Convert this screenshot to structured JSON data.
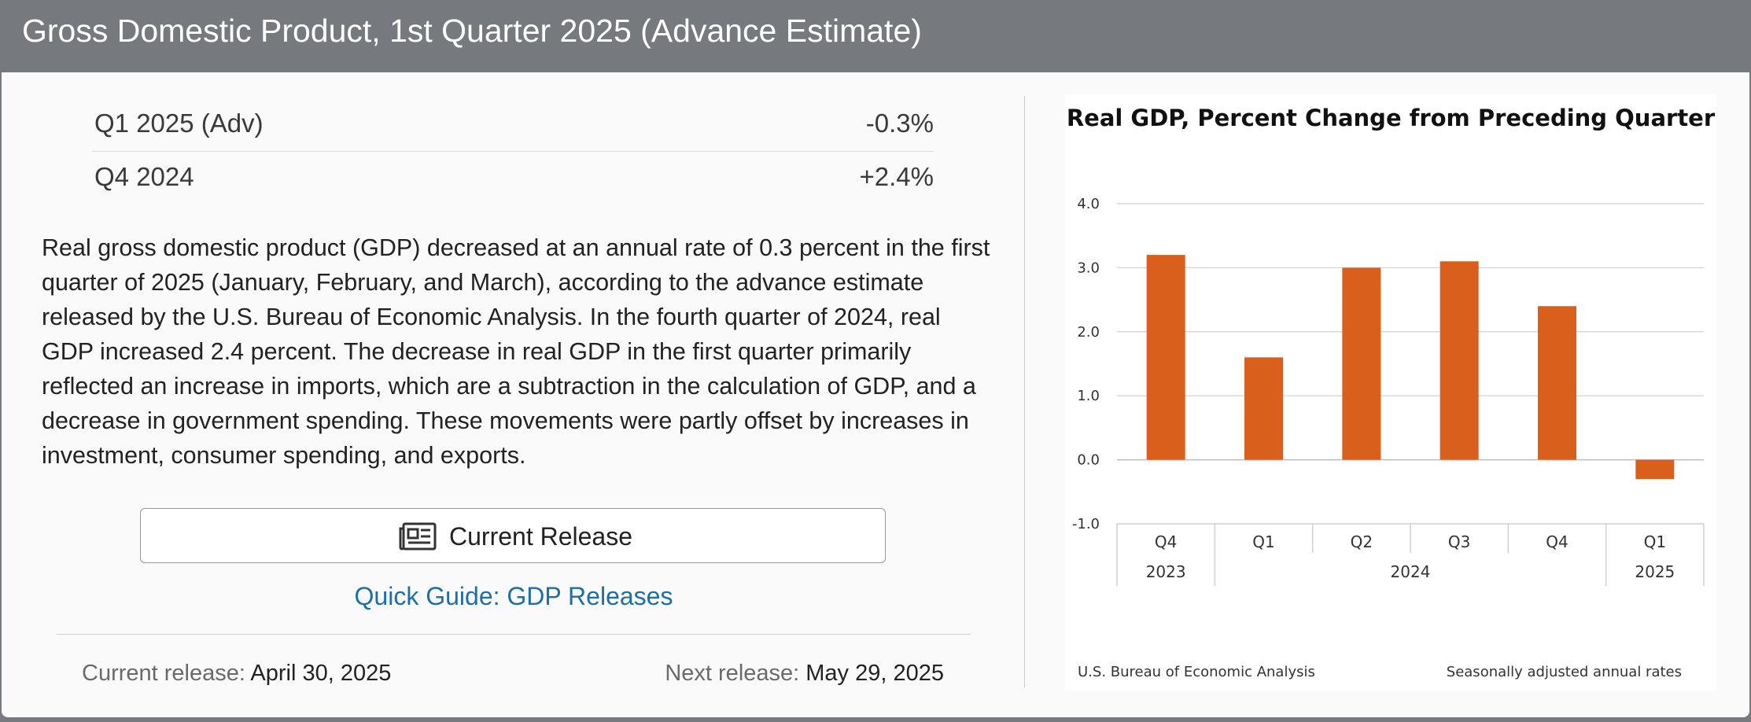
{
  "header": {
    "title": "Gross Domestic Product, 1st Quarter 2025 (Advance Estimate)"
  },
  "stats": [
    {
      "label": "Q1 2025 (Adv)",
      "value": "-0.3%"
    },
    {
      "label": "Q4 2024",
      "value": "+2.4%"
    }
  ],
  "description": "Real gross domestic product (GDP) decreased at an annual rate of 0.3 percent in the first quarter of 2025 (January, February, and March), according to the advance estimate released by the U.S. Bureau of Economic Analysis. In the fourth quarter of 2024, real GDP increased 2.4 percent. The decrease in real GDP in the first quarter primarily reflected an increase in imports, which are a subtraction in the calculation of GDP, and a decrease in government spending. These movements were partly offset by increases in investment, consumer spending, and exports.",
  "buttons": {
    "current_release": "Current Release"
  },
  "links": {
    "quick_guide": "Quick Guide: GDP Releases"
  },
  "release_info": {
    "current_label": "Current release:",
    "current_date": "April 30, 2025",
    "next_label": "Next release:",
    "next_date": "May 29, 2025"
  },
  "icons": {
    "release_button_icon": "newspaper-icon"
  },
  "colors": {
    "header_bg": "#76797d",
    "bar": "#d9601c",
    "link": "#1f6ea8"
  },
  "chart_data": {
    "type": "bar",
    "title": "Real GDP, Percent Change from Preceding Quarter",
    "categories": [
      "Q4",
      "Q1",
      "Q2",
      "Q3",
      "Q4",
      "Q1"
    ],
    "category_groups": [
      {
        "label": "2023",
        "count": 1
      },
      {
        "label": "2024",
        "count": 4
      },
      {
        "label": "2025",
        "count": 1
      }
    ],
    "values": [
      3.2,
      1.6,
      3.0,
      3.1,
      2.4,
      -0.3
    ],
    "ylim": [
      -1.0,
      4.0
    ],
    "yticks": [
      "4.0",
      "3.0",
      "2.0",
      "1.0",
      "0.0",
      "-1.0"
    ],
    "grid": true,
    "source": "U.S. Bureau of Economic Analysis",
    "note": "Seasonally adjusted annual rates"
  }
}
